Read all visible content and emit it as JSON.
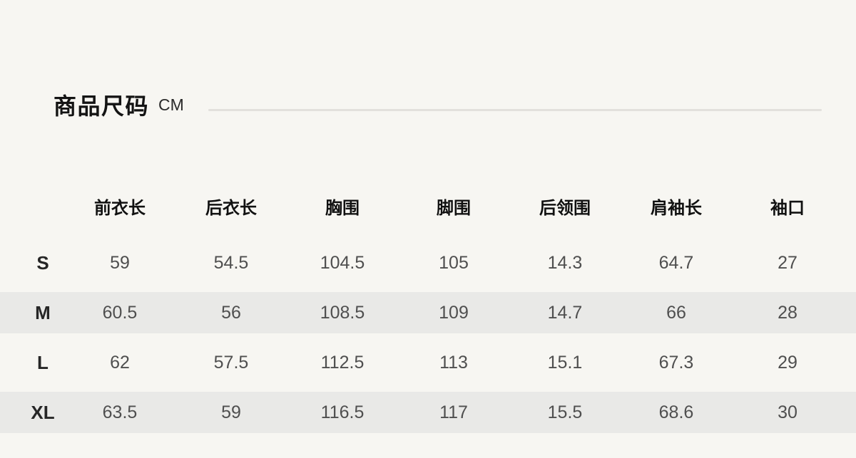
{
  "page": {
    "title": "商品尺码",
    "unit": "CM"
  },
  "size_table": {
    "columns": [
      "前衣长",
      "后衣长",
      "胸围",
      "脚围",
      "后领围",
      "肩袖长",
      "袖口"
    ],
    "rows": [
      {
        "size": "S",
        "values": [
          "59",
          "54.5",
          "104.5",
          "105",
          "14.3",
          "64.7",
          "27"
        ]
      },
      {
        "size": "M",
        "values": [
          "60.5",
          "56",
          "108.5",
          "109",
          "14.7",
          "66",
          "28"
        ]
      },
      {
        "size": "L",
        "values": [
          "62",
          "57.5",
          "112.5",
          "113",
          "15.1",
          "67.3",
          "29"
        ]
      },
      {
        "size": "XL",
        "values": [
          "63.5",
          "59",
          "116.5",
          "117",
          "15.5",
          "68.6",
          "30"
        ]
      }
    ]
  },
  "colors": {
    "background": "#f7f6f2",
    "stripe": "#e9e9e7",
    "divider": "#e2e0dc",
    "heading_text": "#141414",
    "value_text": "#4f4f4f"
  }
}
